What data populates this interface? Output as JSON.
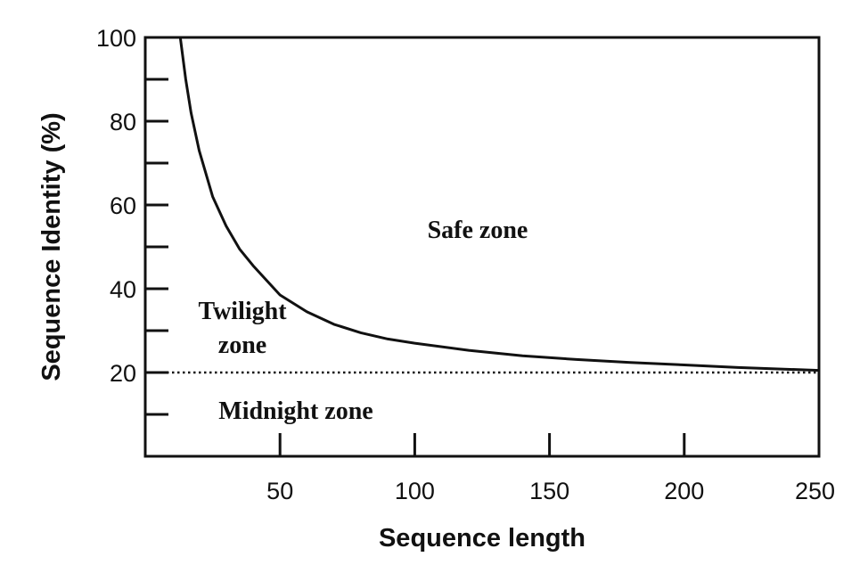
{
  "chart_data": {
    "type": "line",
    "xlabel": "Sequence length",
    "ylabel": "Sequence Identity (%)",
    "xlim": [
      0,
      250
    ],
    "ylim": [
      0,
      100
    ],
    "x_ticks": [
      50,
      100,
      150,
      200,
      250
    ],
    "y_ticks": [
      20,
      40,
      60,
      80,
      100
    ],
    "grid": false,
    "series": [
      {
        "style": "solid",
        "x": [
          13,
          15,
          17,
          20,
          25,
          30,
          35,
          40,
          50,
          60,
          70,
          80,
          90,
          100,
          120,
          140,
          160,
          180,
          200,
          220,
          250
        ],
        "y": [
          100,
          90,
          82,
          73,
          62,
          55,
          49.5,
          45.5,
          38.5,
          34.5,
          31.5,
          29.5,
          28,
          27,
          25.3,
          24,
          23.1,
          22.4,
          21.8,
          21.2,
          20.5
        ]
      },
      {
        "style": "dotted",
        "x": [
          0,
          250
        ],
        "y": [
          20,
          20
        ]
      }
    ],
    "annotations": [
      {
        "text": "Safe zone"
      },
      {
        "text": "Twilight"
      },
      {
        "text": "zone"
      },
      {
        "text": "Midnight zone"
      }
    ]
  }
}
